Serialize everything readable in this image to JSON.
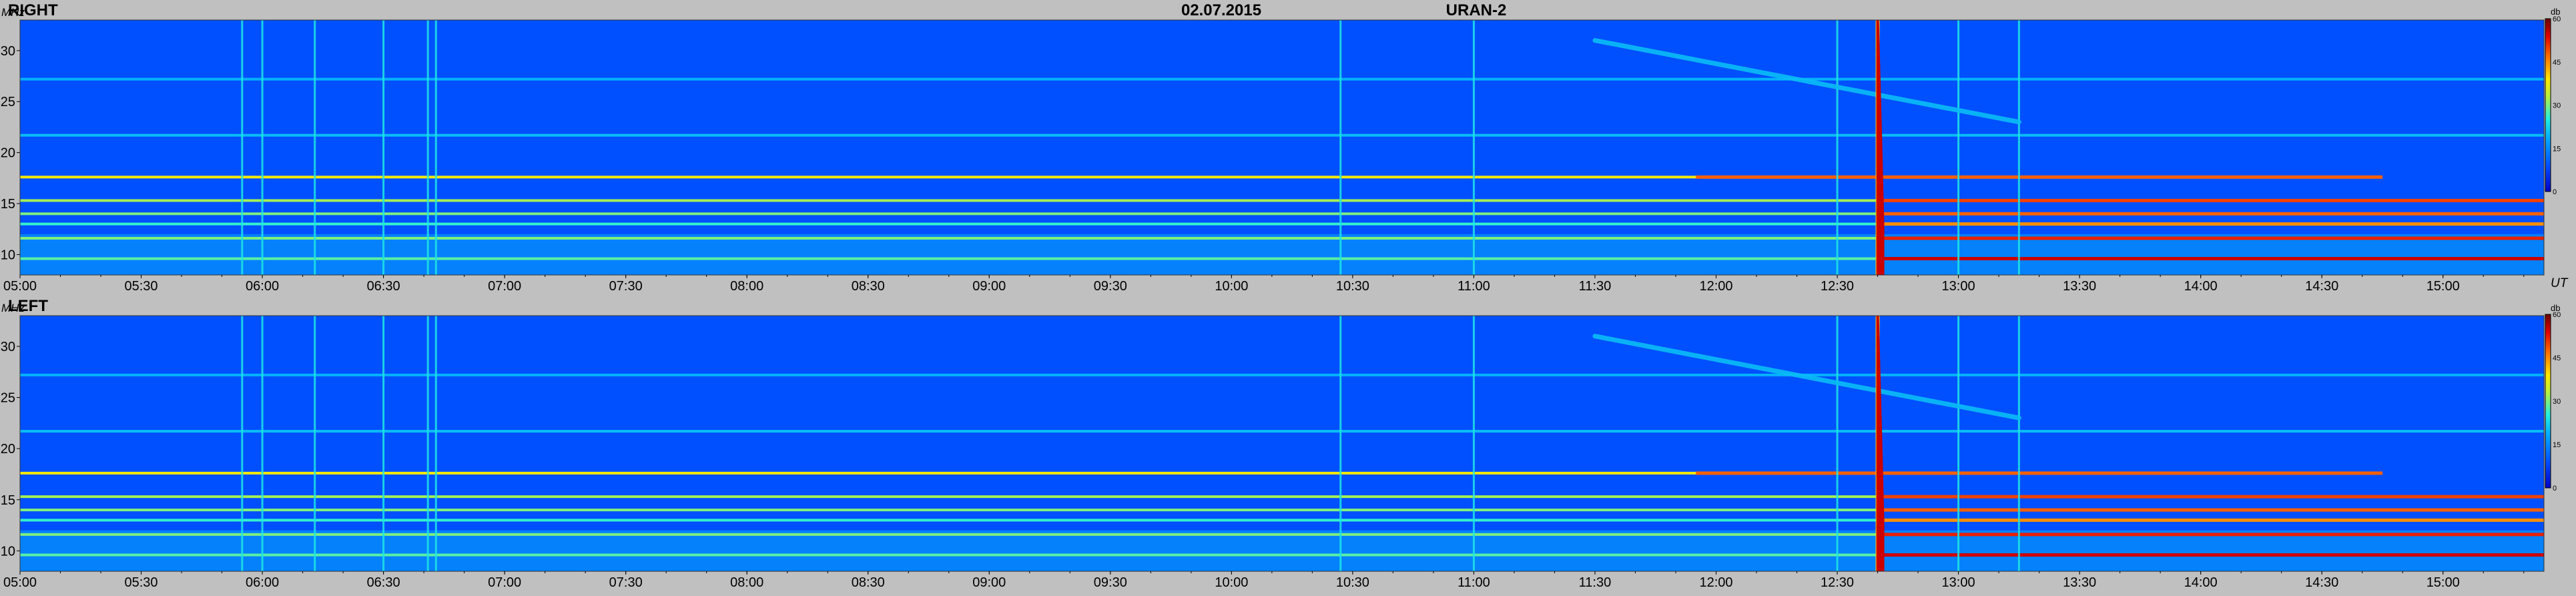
{
  "header": {
    "date": "02.07.2015",
    "instrument": "URAN-2"
  },
  "chart_data": [
    {
      "type": "heatmap",
      "panel_label": "RIGHT",
      "ylabel": "MHz",
      "xlabel": "UT",
      "x_ticks": [
        "05:00",
        "05:30",
        "06:00",
        "06:30",
        "07:00",
        "07:30",
        "08:00",
        "08:30",
        "09:00",
        "09:30",
        "10:00",
        "10:30",
        "11:00",
        "11:30",
        "12:00",
        "12:30",
        "13:00",
        "13:30",
        "14:00",
        "14:30",
        "15:00"
      ],
      "x_range": [
        "05:00",
        "15:25"
      ],
      "y_ticks": [
        10,
        15,
        20,
        25,
        30
      ],
      "ylim": [
        8,
        33
      ],
      "colorbar": {
        "unit": "db",
        "ticks": [
          0,
          15,
          30,
          45,
          60
        ],
        "range": [
          0,
          60
        ]
      },
      "features": {
        "background_level_db": 9,
        "horizontal_bands": [
          {
            "freq_mhz": 9.6,
            "level_db": 28,
            "end_time": "15:25",
            "strong_after": "12:40",
            "strong_level_db": 55
          },
          {
            "freq_mhz": 11.6,
            "level_db": 30,
            "end_time": "15:25",
            "strong_after": "12:40",
            "strong_level_db": 52
          },
          {
            "freq_mhz": 13.0,
            "level_db": 26,
            "end_time": "15:25",
            "strong_after": "12:40",
            "strong_level_db": 45
          },
          {
            "freq_mhz": 14.0,
            "level_db": 30,
            "end_time": "15:25",
            "strong_after": "12:40",
            "strong_level_db": 48
          },
          {
            "freq_mhz": 15.3,
            "level_db": 32,
            "end_time": "15:25",
            "strong_after": "12:40",
            "strong_level_db": 50
          },
          {
            "freq_mhz": 17.6,
            "level_db": 38,
            "end_time": "14:45",
            "strong_after": "11:55",
            "strong_level_db": 48
          },
          {
            "freq_mhz": 21.7,
            "level_db": 20,
            "end_time": "15:25"
          },
          {
            "freq_mhz": 27.2,
            "level_db": 19,
            "end_time": "15:25"
          }
        ],
        "vertical_lines": [
          "05:55",
          "06:00",
          "06:13",
          "06:30",
          "06:41",
          "06:43",
          "10:27",
          "11:00",
          "12:30",
          "13:00",
          "13:15"
        ],
        "type_iii_burst": {
          "time": "12:40",
          "level_db": 55,
          "freq_range": [
            8,
            33
          ]
        },
        "drifting_feature": {
          "start_time": "11:30",
          "end_time": "13:15",
          "start_freq_mhz": 31,
          "end_freq_mhz": 23,
          "level_db": 20
        }
      }
    },
    {
      "type": "heatmap",
      "panel_label": "LEFT",
      "ylabel": "MHz",
      "xlabel": "UT",
      "x_ticks": [
        "05:00",
        "05:30",
        "06:00",
        "06:30",
        "07:00",
        "07:30",
        "08:00",
        "08:30",
        "09:00",
        "09:30",
        "10:00",
        "10:30",
        "11:00",
        "11:30",
        "12:00",
        "12:30",
        "13:00",
        "13:30",
        "14:00",
        "14:30",
        "15:00"
      ],
      "x_range": [
        "05:00",
        "15:25"
      ],
      "y_ticks": [
        10,
        15,
        20,
        25,
        30
      ],
      "ylim": [
        8,
        33
      ],
      "colorbar": {
        "unit": "db",
        "ticks": [
          0,
          15,
          30,
          45,
          60
        ],
        "range": [
          0,
          60
        ]
      },
      "features": {
        "background_level_db": 9,
        "horizontal_bands": [
          {
            "freq_mhz": 9.6,
            "level_db": 28,
            "end_time": "15:25",
            "strong_after": "12:40",
            "strong_level_db": 55
          },
          {
            "freq_mhz": 11.6,
            "level_db": 30,
            "end_time": "15:25",
            "strong_after": "12:40",
            "strong_level_db": 52
          },
          {
            "freq_mhz": 13.0,
            "level_db": 26,
            "end_time": "15:25",
            "strong_after": "12:40",
            "strong_level_db": 45
          },
          {
            "freq_mhz": 14.0,
            "level_db": 30,
            "end_time": "15:25",
            "strong_after": "12:40",
            "strong_level_db": 48
          },
          {
            "freq_mhz": 15.3,
            "level_db": 32,
            "end_time": "15:25",
            "strong_after": "12:40",
            "strong_level_db": 50
          },
          {
            "freq_mhz": 17.6,
            "level_db": 38,
            "end_time": "14:45",
            "strong_after": "11:55",
            "strong_level_db": 48
          },
          {
            "freq_mhz": 21.7,
            "level_db": 20,
            "end_time": "15:25"
          },
          {
            "freq_mhz": 27.2,
            "level_db": 19,
            "end_time": "15:25"
          }
        ],
        "vertical_lines": [
          "05:55",
          "06:00",
          "06:13",
          "06:30",
          "06:41",
          "06:43",
          "10:27",
          "11:00",
          "12:30",
          "13:00",
          "13:15"
        ],
        "type_iii_burst": {
          "time": "12:40",
          "level_db": 55,
          "freq_range": [
            8,
            33
          ]
        },
        "drifting_feature": {
          "start_time": "11:30",
          "end_time": "13:15",
          "start_freq_mhz": 31,
          "end_freq_mhz": 23,
          "level_db": 20
        }
      }
    }
  ]
}
